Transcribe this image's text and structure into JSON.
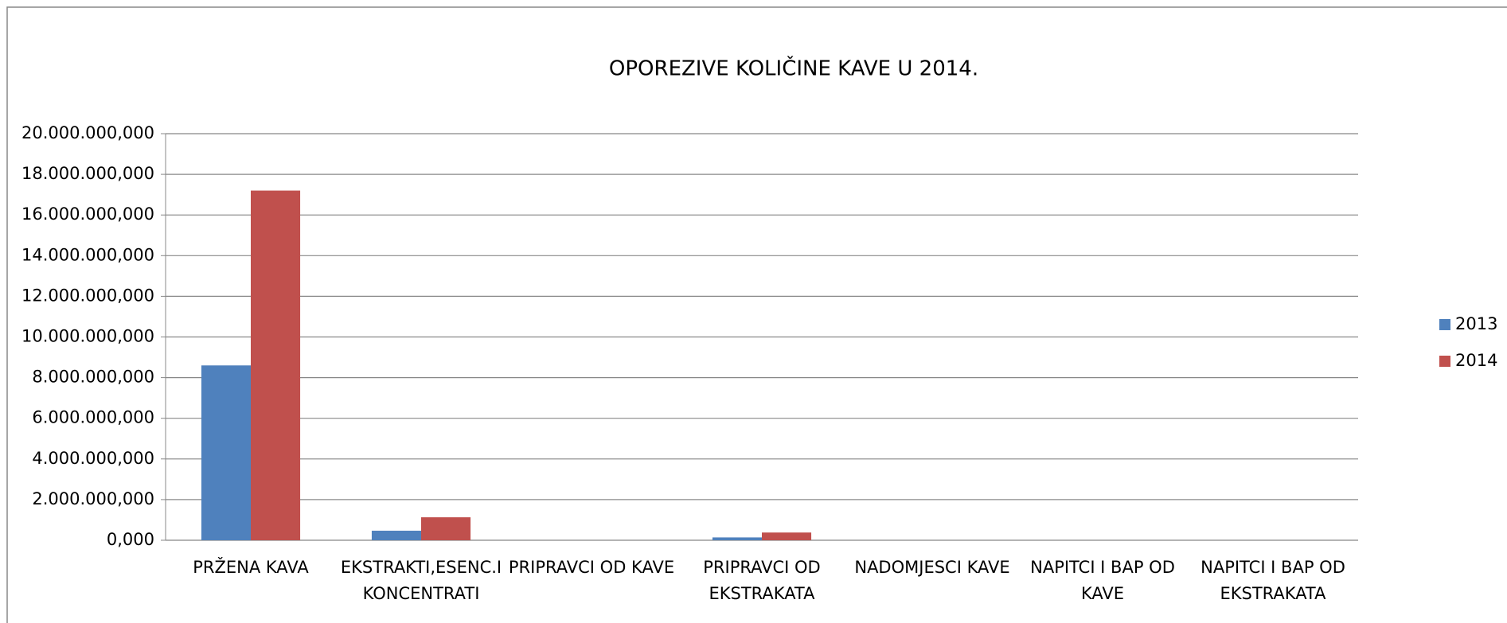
{
  "chart_data": {
    "type": "bar",
    "title": "OPOREZIVE KOLIČINE KAVE U 2014.",
    "categories": [
      "PRŽENA KAVA",
      "EKSTRAKTI,ESENC.I KONCENTRATI",
      "PRIPRAVCI OD KAVE",
      "PRIPRAVCI OD EKSTRAKATA",
      "NADOMJESCI KAVE",
      "NAPITCI I BAP OD KAVE",
      "NAPITCI I BAP OD EKSTRAKATA"
    ],
    "series": [
      {
        "name": "2013",
        "color": "#4f81bd",
        "values": [
          8600000,
          470000,
          0,
          140000,
          0,
          0,
          0
        ]
      },
      {
        "name": "2014",
        "color": "#c0504d",
        "values": [
          17200000,
          1130000,
          0,
          380000,
          0,
          0,
          0
        ]
      }
    ],
    "ylim": [
      0,
      20000000
    ],
    "yticks": [
      {
        "value": 0,
        "label": "0,000"
      },
      {
        "value": 2000000,
        "label": "2.000.000,000"
      },
      {
        "value": 4000000,
        "label": "4.000.000,000"
      },
      {
        "value": 6000000,
        "label": "6.000.000,000"
      },
      {
        "value": 8000000,
        "label": "8.000.000,000"
      },
      {
        "value": 10000000,
        "label": "10.000.000,000"
      },
      {
        "value": 12000000,
        "label": "12.000.000,000"
      },
      {
        "value": 14000000,
        "label": "14.000.000,000"
      },
      {
        "value": 16000000,
        "label": "16.000.000,000"
      },
      {
        "value": 18000000,
        "label": "18.000.000,000"
      },
      {
        "value": 20000000,
        "label": "20.000.000,000"
      }
    ],
    "grid": true,
    "legend": "right"
  }
}
